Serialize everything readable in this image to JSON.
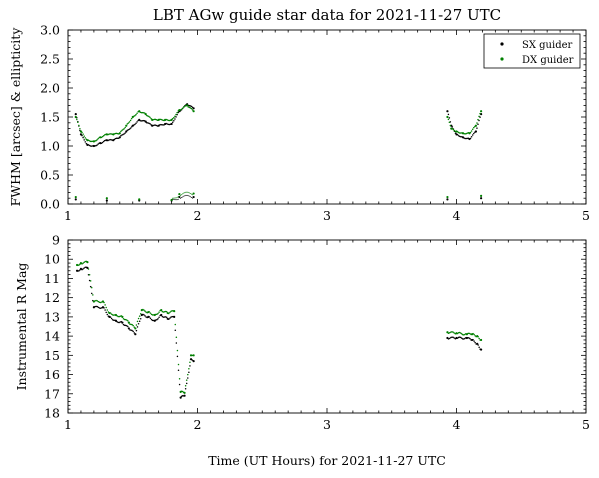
{
  "figure": {
    "title": "LBT AGw guide star data for 2021-11-27 UTC",
    "xlabel": "Time (UT Hours) for 2021-11-27 UTC"
  },
  "colors": {
    "sx": "#000000",
    "dx": "#008000"
  },
  "chart_data": [
    {
      "type": "scatter",
      "ylabel": "FWHM [arcsec] & ellipticity",
      "xlim": [
        1,
        5
      ],
      "ylim": [
        0,
        3
      ],
      "xticks": [
        "1",
        "2",
        "3",
        "4",
        "5"
      ],
      "yticks": [
        "0.0",
        "0.5",
        "1.0",
        "1.5",
        "2.0",
        "2.5",
        "3.0"
      ],
      "legend": {
        "position": "top-right",
        "entries": [
          "SX guider",
          "DX guider"
        ]
      },
      "series": [
        {
          "name": "SX guider",
          "kind": "fwhm",
          "points": [
            [
              1.06,
              1.55
            ],
            [
              1.1,
              1.2
            ],
            [
              1.15,
              1.02
            ],
            [
              1.2,
              1.0
            ],
            [
              1.25,
              1.05
            ],
            [
              1.3,
              1.1
            ],
            [
              1.35,
              1.1
            ],
            [
              1.4,
              1.15
            ],
            [
              1.45,
              1.25
            ],
            [
              1.5,
              1.35
            ],
            [
              1.55,
              1.45
            ],
            [
              1.6,
              1.42
            ],
            [
              1.65,
              1.35
            ],
            [
              1.7,
              1.35
            ],
            [
              1.75,
              1.38
            ],
            [
              1.8,
              1.38
            ],
            [
              1.86,
              1.6
            ],
            [
              1.92,
              1.72
            ],
            [
              1.97,
              1.65
            ],
            [
              3.93,
              1.6
            ],
            [
              3.96,
              1.35
            ],
            [
              4.0,
              1.2
            ],
            [
              4.05,
              1.15
            ],
            [
              4.1,
              1.12
            ],
            [
              4.15,
              1.25
            ],
            [
              4.19,
              1.55
            ]
          ]
        },
        {
          "name": "DX guider",
          "kind": "fwhm",
          "points": [
            [
              1.06,
              1.5
            ],
            [
              1.1,
              1.25
            ],
            [
              1.15,
              1.1
            ],
            [
              1.2,
              1.08
            ],
            [
              1.25,
              1.15
            ],
            [
              1.3,
              1.2
            ],
            [
              1.35,
              1.2
            ],
            [
              1.4,
              1.22
            ],
            [
              1.45,
              1.35
            ],
            [
              1.5,
              1.5
            ],
            [
              1.55,
              1.6
            ],
            [
              1.6,
              1.55
            ],
            [
              1.65,
              1.45
            ],
            [
              1.7,
              1.45
            ],
            [
              1.75,
              1.45
            ],
            [
              1.8,
              1.45
            ],
            [
              1.86,
              1.62
            ],
            [
              1.92,
              1.7
            ],
            [
              1.97,
              1.6
            ],
            [
              3.93,
              1.5
            ],
            [
              3.96,
              1.3
            ],
            [
              4.0,
              1.25
            ],
            [
              4.05,
              1.22
            ],
            [
              4.1,
              1.22
            ],
            [
              4.15,
              1.35
            ],
            [
              4.19,
              1.6
            ]
          ]
        },
        {
          "name": "SX guider",
          "kind": "ellipticity",
          "points": [
            [
              1.06,
              0.08
            ],
            [
              1.3,
              0.06
            ],
            [
              1.55,
              0.06
            ],
            [
              1.8,
              0.06
            ],
            [
              1.86,
              0.12
            ],
            [
              1.97,
              0.12
            ],
            [
              3.93,
              0.08
            ],
            [
              4.19,
              0.1
            ]
          ]
        },
        {
          "name": "DX guider",
          "kind": "ellipticity",
          "points": [
            [
              1.06,
              0.12
            ],
            [
              1.3,
              0.1
            ],
            [
              1.55,
              0.08
            ],
            [
              1.8,
              0.07
            ],
            [
              1.86,
              0.17
            ],
            [
              1.97,
              0.18
            ],
            [
              3.93,
              0.12
            ],
            [
              4.19,
              0.14
            ]
          ]
        }
      ]
    },
    {
      "type": "scatter",
      "ylabel": "Instrumental R Mag",
      "xlim": [
        1,
        5
      ],
      "ylim": [
        18,
        9
      ],
      "inverted_y": true,
      "xticks": [
        "1",
        "2",
        "3",
        "4",
        "5"
      ],
      "yticks": [
        "9",
        "10",
        "11",
        "12",
        "13",
        "14",
        "15",
        "16",
        "17",
        "18"
      ],
      "series": [
        {
          "name": "SX guider",
          "points": [
            [
              1.07,
              10.6
            ],
            [
              1.1,
              10.5
            ],
            [
              1.15,
              10.45
            ],
            [
              1.2,
              12.5
            ],
            [
              1.27,
              12.5
            ],
            [
              1.32,
              13.0
            ],
            [
              1.37,
              13.2
            ],
            [
              1.42,
              13.3
            ],
            [
              1.47,
              13.6
            ],
            [
              1.52,
              13.9
            ],
            [
              1.57,
              12.9
            ],
            [
              1.62,
              13.0
            ],
            [
              1.67,
              13.2
            ],
            [
              1.72,
              12.9
            ],
            [
              1.77,
              13.1
            ],
            [
              1.82,
              13.0
            ],
            [
              1.87,
              17.2
            ],
            [
              1.9,
              17.1
            ],
            [
              1.95,
              15.2
            ],
            [
              1.97,
              15.3
            ],
            [
              3.93,
              14.1
            ],
            [
              4.0,
              14.1
            ],
            [
              4.08,
              14.1
            ],
            [
              4.12,
              14.2
            ],
            [
              4.16,
              14.4
            ],
            [
              4.19,
              14.7
            ]
          ]
        },
        {
          "name": "DX guider",
          "points": [
            [
              1.07,
              10.3
            ],
            [
              1.1,
              10.2
            ],
            [
              1.15,
              10.15
            ],
            [
              1.2,
              12.2
            ],
            [
              1.27,
              12.2
            ],
            [
              1.32,
              12.8
            ],
            [
              1.37,
              12.9
            ],
            [
              1.42,
              13.0
            ],
            [
              1.47,
              13.3
            ],
            [
              1.52,
              13.6
            ],
            [
              1.57,
              12.65
            ],
            [
              1.62,
              12.75
            ],
            [
              1.67,
              12.9
            ],
            [
              1.72,
              12.65
            ],
            [
              1.77,
              12.8
            ],
            [
              1.82,
              12.7
            ],
            [
              1.87,
              16.9
            ],
            [
              1.9,
              16.95
            ],
            [
              1.95,
              15.0
            ],
            [
              1.97,
              15.0
            ],
            [
              3.93,
              13.8
            ],
            [
              4.0,
              13.85
            ],
            [
              4.08,
              13.9
            ],
            [
              4.12,
              13.9
            ],
            [
              4.16,
              14.0
            ],
            [
              4.19,
              14.2
            ]
          ]
        }
      ]
    }
  ]
}
